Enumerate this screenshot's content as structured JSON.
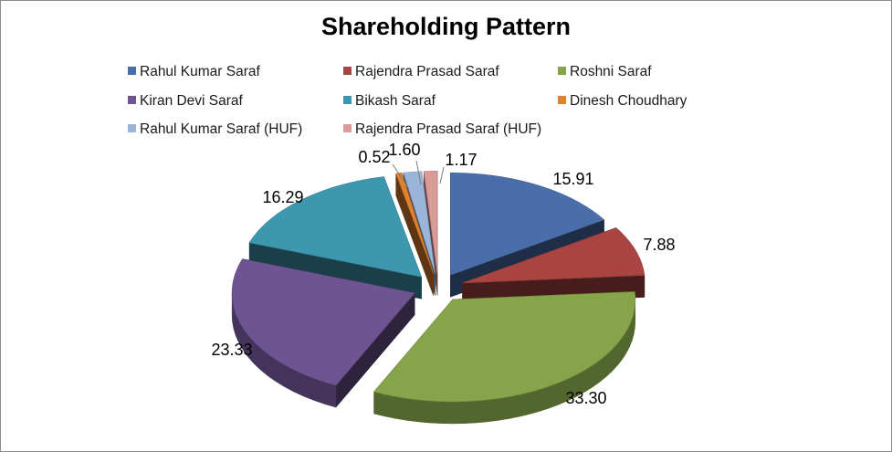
{
  "chart_data": {
    "type": "pie",
    "title": "Shareholding Pattern",
    "legend_position": "top",
    "slices": [
      {
        "label": "Rahul Kumar Saraf",
        "value": 15.91,
        "value_label": "15.91",
        "color": "#4A6EA9"
      },
      {
        "label": "Rajendra Prasad Saraf",
        "value": 7.88,
        "value_label": "7.88",
        "color": "#A94442"
      },
      {
        "label": "Roshni Saraf",
        "value": 33.3,
        "value_label": "33.30",
        "color": "#86A44A"
      },
      {
        "label": "Kiran Devi Saraf",
        "value": 23.33,
        "value_label": "23.33",
        "color": "#6E5492"
      },
      {
        "label": "Bikash Saraf",
        "value": 16.29,
        "value_label": "16.29",
        "color": "#3D97AF"
      },
      {
        "label": "Dinesh Choudhary",
        "value": 0.52,
        "value_label": "0.52",
        "color": "#E0812E"
      },
      {
        "label": "Rahul Kumar Saraf (HUF)",
        "value": 1.6,
        "value_label": "1.60",
        "color": "#9BB4D9"
      },
      {
        "label": "Rajendra Prasad Saraf (HUF)",
        "value": 1.17,
        "value_label": "1.17",
        "color": "#D99A98"
      }
    ]
  }
}
